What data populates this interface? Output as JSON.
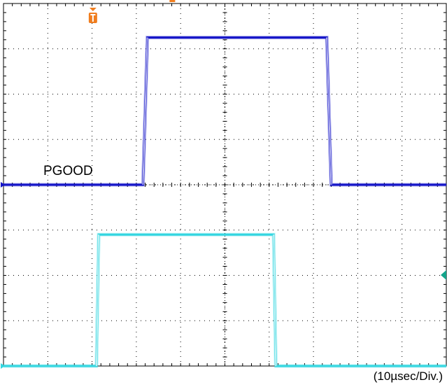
{
  "chart_data": {
    "type": "line",
    "title": "",
    "xlabel": "",
    "ylabel": "",
    "timebase_label": "(10µsec/Div.)",
    "grid": true,
    "xlim": [
      0,
      100
    ],
    "ylim": [
      0,
      8
    ],
    "x_divisions": 10,
    "y_divisions": 8,
    "series": [
      {
        "name": "PGOOD",
        "color": "#1414c8",
        "x": [
          0,
          31.5,
          32.5,
          73.0,
          74.0,
          100
        ],
        "y": [
          4.0,
          4.0,
          7.25,
          7.25,
          4.0,
          4.0
        ]
      },
      {
        "name": "",
        "color": "#33d6e0",
        "x": [
          0,
          21.0,
          21.5,
          61.0,
          61.5,
          100
        ],
        "y": [
          0.0,
          0.0,
          2.9,
          2.9,
          0.0,
          0.0
        ]
      }
    ],
    "markers": {
      "trigger_color": "#f07d1e",
      "ch2_level_color": "#12a58c"
    }
  }
}
